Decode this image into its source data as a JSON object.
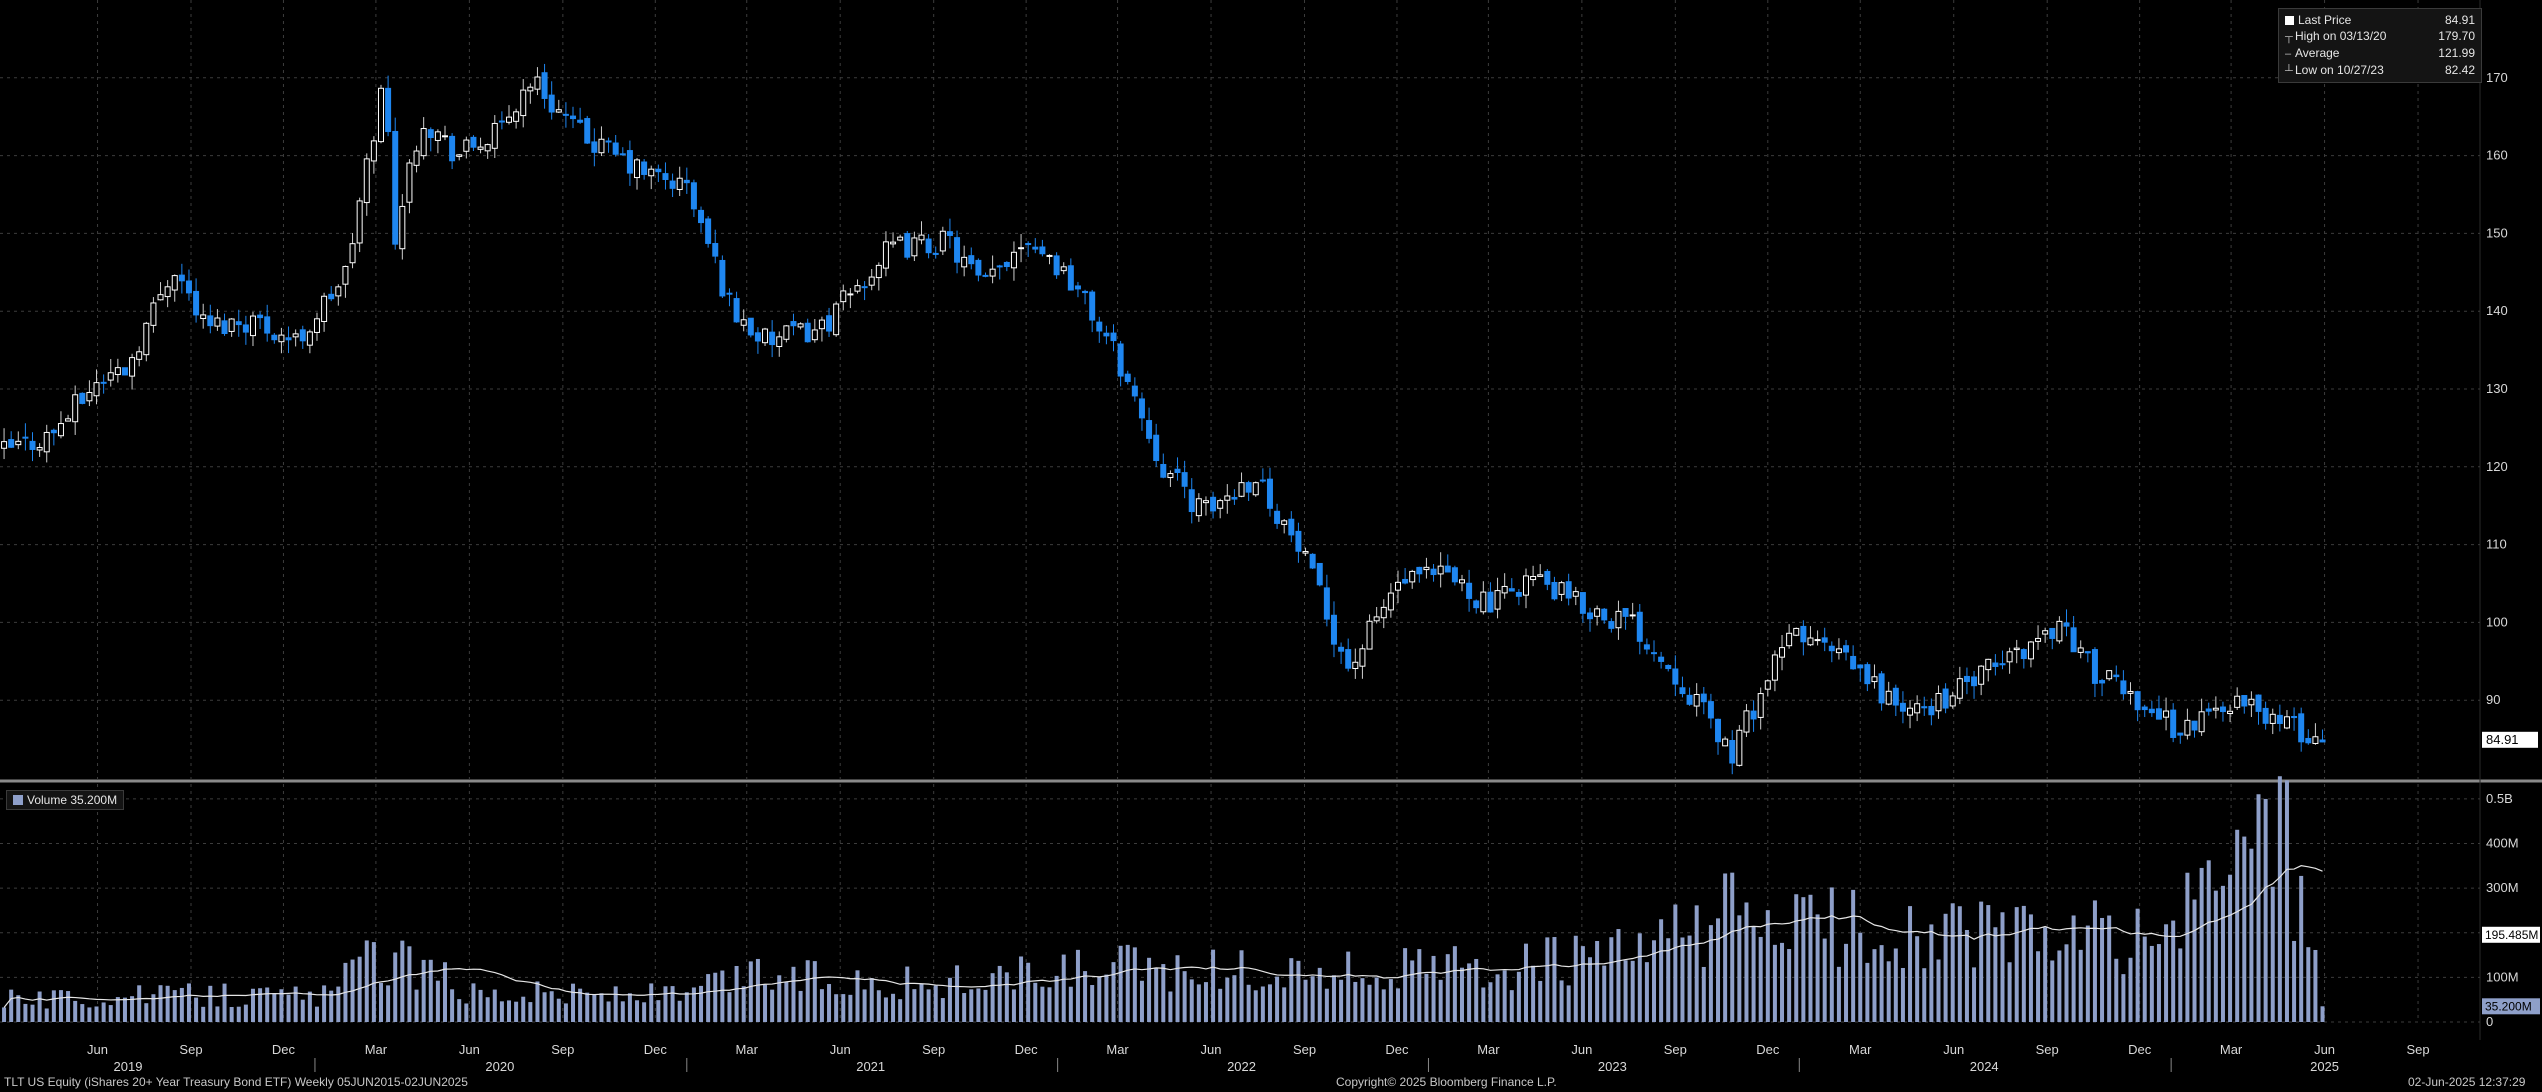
{
  "legend": {
    "last_price_label": "Last Price",
    "last_price_value": "84.91",
    "high_label": "High on 03/13/20",
    "high_value": "179.70",
    "average_label": "Average",
    "average_value": "121.99",
    "low_label": "Low on 10/27/23",
    "low_value": "82.42"
  },
  "volume_legend": {
    "label": "Volume 35.200M"
  },
  "footer": {
    "left": "TLT US Equity (iShares 20+ Year Treasury Bond ETF)  Weekly 05JUN2015-02JUN2025",
    "center": "Copyright© 2025 Bloomberg Finance L.P.",
    "right": "02-Jun-2025 12:37:29"
  },
  "colors": {
    "background": "#000000",
    "grid": "#3c3c3c",
    "up_candle": "#ffffff",
    "down_candle": "#1e86f0",
    "volume_bar": "#8e9fc9",
    "volume_ma": "#e6e6e6",
    "separator": "#8a8a8a"
  },
  "chart_data": [
    {
      "type": "candlestick",
      "frequency": "weekly",
      "ylim": [
        80,
        180
      ],
      "y_ticks": [
        "90",
        "100",
        "110",
        "120",
        "130",
        "140",
        "150",
        "160",
        "170"
      ],
      "last_price_tag": "84.91",
      "series": [
        {
          "date": "2019-03-01",
          "close": 122
        },
        {
          "date": "2019-04-15",
          "close": 124
        },
        {
          "date": "2019-06-01",
          "close": 131
        },
        {
          "date": "2019-07-01",
          "close": 133
        },
        {
          "date": "2019-08-15",
          "close": 146
        },
        {
          "date": "2019-09-15",
          "close": 138
        },
        {
          "date": "2019-11-01",
          "close": 139
        },
        {
          "date": "2019-12-15",
          "close": 136
        },
        {
          "date": "2020-02-01",
          "close": 145
        },
        {
          "date": "2020-03-09",
          "close": 170
        },
        {
          "date": "2020-03-20",
          "close": 150
        },
        {
          "date": "2020-04-15",
          "close": 165
        },
        {
          "date": "2020-05-20",
          "close": 160
        },
        {
          "date": "2020-07-01",
          "close": 163
        },
        {
          "date": "2020-08-01",
          "close": 170
        },
        {
          "date": "2020-09-15",
          "close": 163
        },
        {
          "date": "2020-11-15",
          "close": 158
        },
        {
          "date": "2021-01-01",
          "close": 156
        },
        {
          "date": "2021-02-15",
          "close": 140
        },
        {
          "date": "2021-03-20",
          "close": 136
        },
        {
          "date": "2021-05-15",
          "close": 138
        },
        {
          "date": "2021-07-20",
          "close": 148
        },
        {
          "date": "2021-09-15",
          "close": 149
        },
        {
          "date": "2021-10-20",
          "close": 143
        },
        {
          "date": "2021-12-01",
          "close": 150
        },
        {
          "date": "2022-01-15",
          "close": 144
        },
        {
          "date": "2022-03-01",
          "close": 134
        },
        {
          "date": "2022-04-15",
          "close": 120
        },
        {
          "date": "2022-05-25",
          "close": 114
        },
        {
          "date": "2022-07-15",
          "close": 119
        },
        {
          "date": "2022-09-01",
          "close": 108
        },
        {
          "date": "2022-10-15",
          "close": 94
        },
        {
          "date": "2022-12-01",
          "close": 105
        },
        {
          "date": "2023-01-20",
          "close": 106
        },
        {
          "date": "2023-03-05",
          "close": 102
        },
        {
          "date": "2023-04-10",
          "close": 106
        },
        {
          "date": "2023-06-01",
          "close": 102
        },
        {
          "date": "2023-07-20",
          "close": 100
        },
        {
          "date": "2023-09-10",
          "close": 92
        },
        {
          "date": "2023-10-27",
          "close": 83
        },
        {
          "date": "2023-11-20",
          "close": 90
        },
        {
          "date": "2023-12-27",
          "close": 99
        },
        {
          "date": "2024-02-15",
          "close": 95
        },
        {
          "date": "2024-04-20",
          "close": 88
        },
        {
          "date": "2024-06-15",
          "close": 92
        },
        {
          "date": "2024-08-01",
          "close": 96
        },
        {
          "date": "2024-09-15",
          "close": 100
        },
        {
          "date": "2024-10-20",
          "close": 93
        },
        {
          "date": "2024-11-20",
          "close": 91
        },
        {
          "date": "2025-01-10",
          "close": 86
        },
        {
          "date": "2025-03-01",
          "close": 90
        },
        {
          "date": "2025-04-10",
          "close": 88
        },
        {
          "date": "2025-05-20",
          "close": 85
        },
        {
          "date": "2025-06-02",
          "close": 84.91
        }
      ]
    },
    {
      "type": "bar",
      "title": "Volume",
      "unit": "shares",
      "y_ticks": [
        "0",
        "100M",
        "200M",
        "300M",
        "400M",
        "0.5B"
      ],
      "ylim": [
        0,
        520000000
      ],
      "moving_average_tag": "195.485M",
      "last_volume_tag": "35.200M",
      "series": [
        {
          "date": "2019-03-01",
          "volume": 50000000
        },
        {
          "date": "2019-08-01",
          "volume": 60000000
        },
        {
          "date": "2020-01-15",
          "volume": 60000000
        },
        {
          "date": "2020-03-01",
          "volume": 160000000
        },
        {
          "date": "2020-06-01",
          "volume": 70000000
        },
        {
          "date": "2021-01-01",
          "volume": 60000000
        },
        {
          "date": "2021-03-01",
          "volume": 110000000
        },
        {
          "date": "2021-09-01",
          "volume": 85000000
        },
        {
          "date": "2022-03-01",
          "volume": 120000000
        },
        {
          "date": "2022-09-01",
          "volume": 110000000
        },
        {
          "date": "2023-03-01",
          "volume": 120000000
        },
        {
          "date": "2023-08-01",
          "volume": 150000000
        },
        {
          "date": "2023-10-15",
          "volume": 240000000
        },
        {
          "date": "2023-12-15",
          "volume": 220000000
        },
        {
          "date": "2024-04-01",
          "volume": 200000000
        },
        {
          "date": "2024-09-01",
          "volume": 190000000
        },
        {
          "date": "2025-01-01",
          "volume": 185000000
        },
        {
          "date": "2025-04-07",
          "volume": 500000000
        },
        {
          "date": "2025-05-20",
          "volume": 200000000
        },
        {
          "date": "2025-06-02",
          "volume": 35200000
        }
      ]
    }
  ],
  "x_axis": {
    "months": [
      {
        "date": "2019-06-01",
        "label": "Jun"
      },
      {
        "date": "2019-09-01",
        "label": "Sep"
      },
      {
        "date": "2019-12-01",
        "label": "Dec"
      },
      {
        "date": "2020-03-01",
        "label": "Mar"
      },
      {
        "date": "2020-06-01",
        "label": "Jun"
      },
      {
        "date": "2020-09-01",
        "label": "Sep"
      },
      {
        "date": "2020-12-01",
        "label": "Dec"
      },
      {
        "date": "2021-03-01",
        "label": "Mar"
      },
      {
        "date": "2021-06-01",
        "label": "Jun"
      },
      {
        "date": "2021-09-01",
        "label": "Sep"
      },
      {
        "date": "2021-12-01",
        "label": "Dec"
      },
      {
        "date": "2022-03-01",
        "label": "Mar"
      },
      {
        "date": "2022-06-01",
        "label": "Jun"
      },
      {
        "date": "2022-09-01",
        "label": "Sep"
      },
      {
        "date": "2022-12-01",
        "label": "Dec"
      },
      {
        "date": "2023-03-01",
        "label": "Mar"
      },
      {
        "date": "2023-06-01",
        "label": "Jun"
      },
      {
        "date": "2023-09-01",
        "label": "Sep"
      },
      {
        "date": "2023-12-01",
        "label": "Dec"
      },
      {
        "date": "2024-03-01",
        "label": "Mar"
      },
      {
        "date": "2024-06-01",
        "label": "Jun"
      },
      {
        "date": "2024-09-01",
        "label": "Sep"
      },
      {
        "date": "2024-12-01",
        "label": "Dec"
      },
      {
        "date": "2025-03-01",
        "label": "Mar"
      },
      {
        "date": "2025-06-01",
        "label": "Jun"
      },
      {
        "date": "2025-09-01",
        "label": "Sep"
      }
    ],
    "years": [
      {
        "date": "2019-07-01",
        "label": "2019"
      },
      {
        "date": "2020-07-01",
        "label": "2020"
      },
      {
        "date": "2021-07-01",
        "label": "2021"
      },
      {
        "date": "2022-07-01",
        "label": "2022"
      },
      {
        "date": "2023-07-01",
        "label": "2023"
      },
      {
        "date": "2024-07-01",
        "label": "2024"
      },
      {
        "date": "2025-06-01",
        "label": "2025"
      }
    ],
    "range": [
      "2019-02-25",
      "2025-11-01"
    ]
  }
}
